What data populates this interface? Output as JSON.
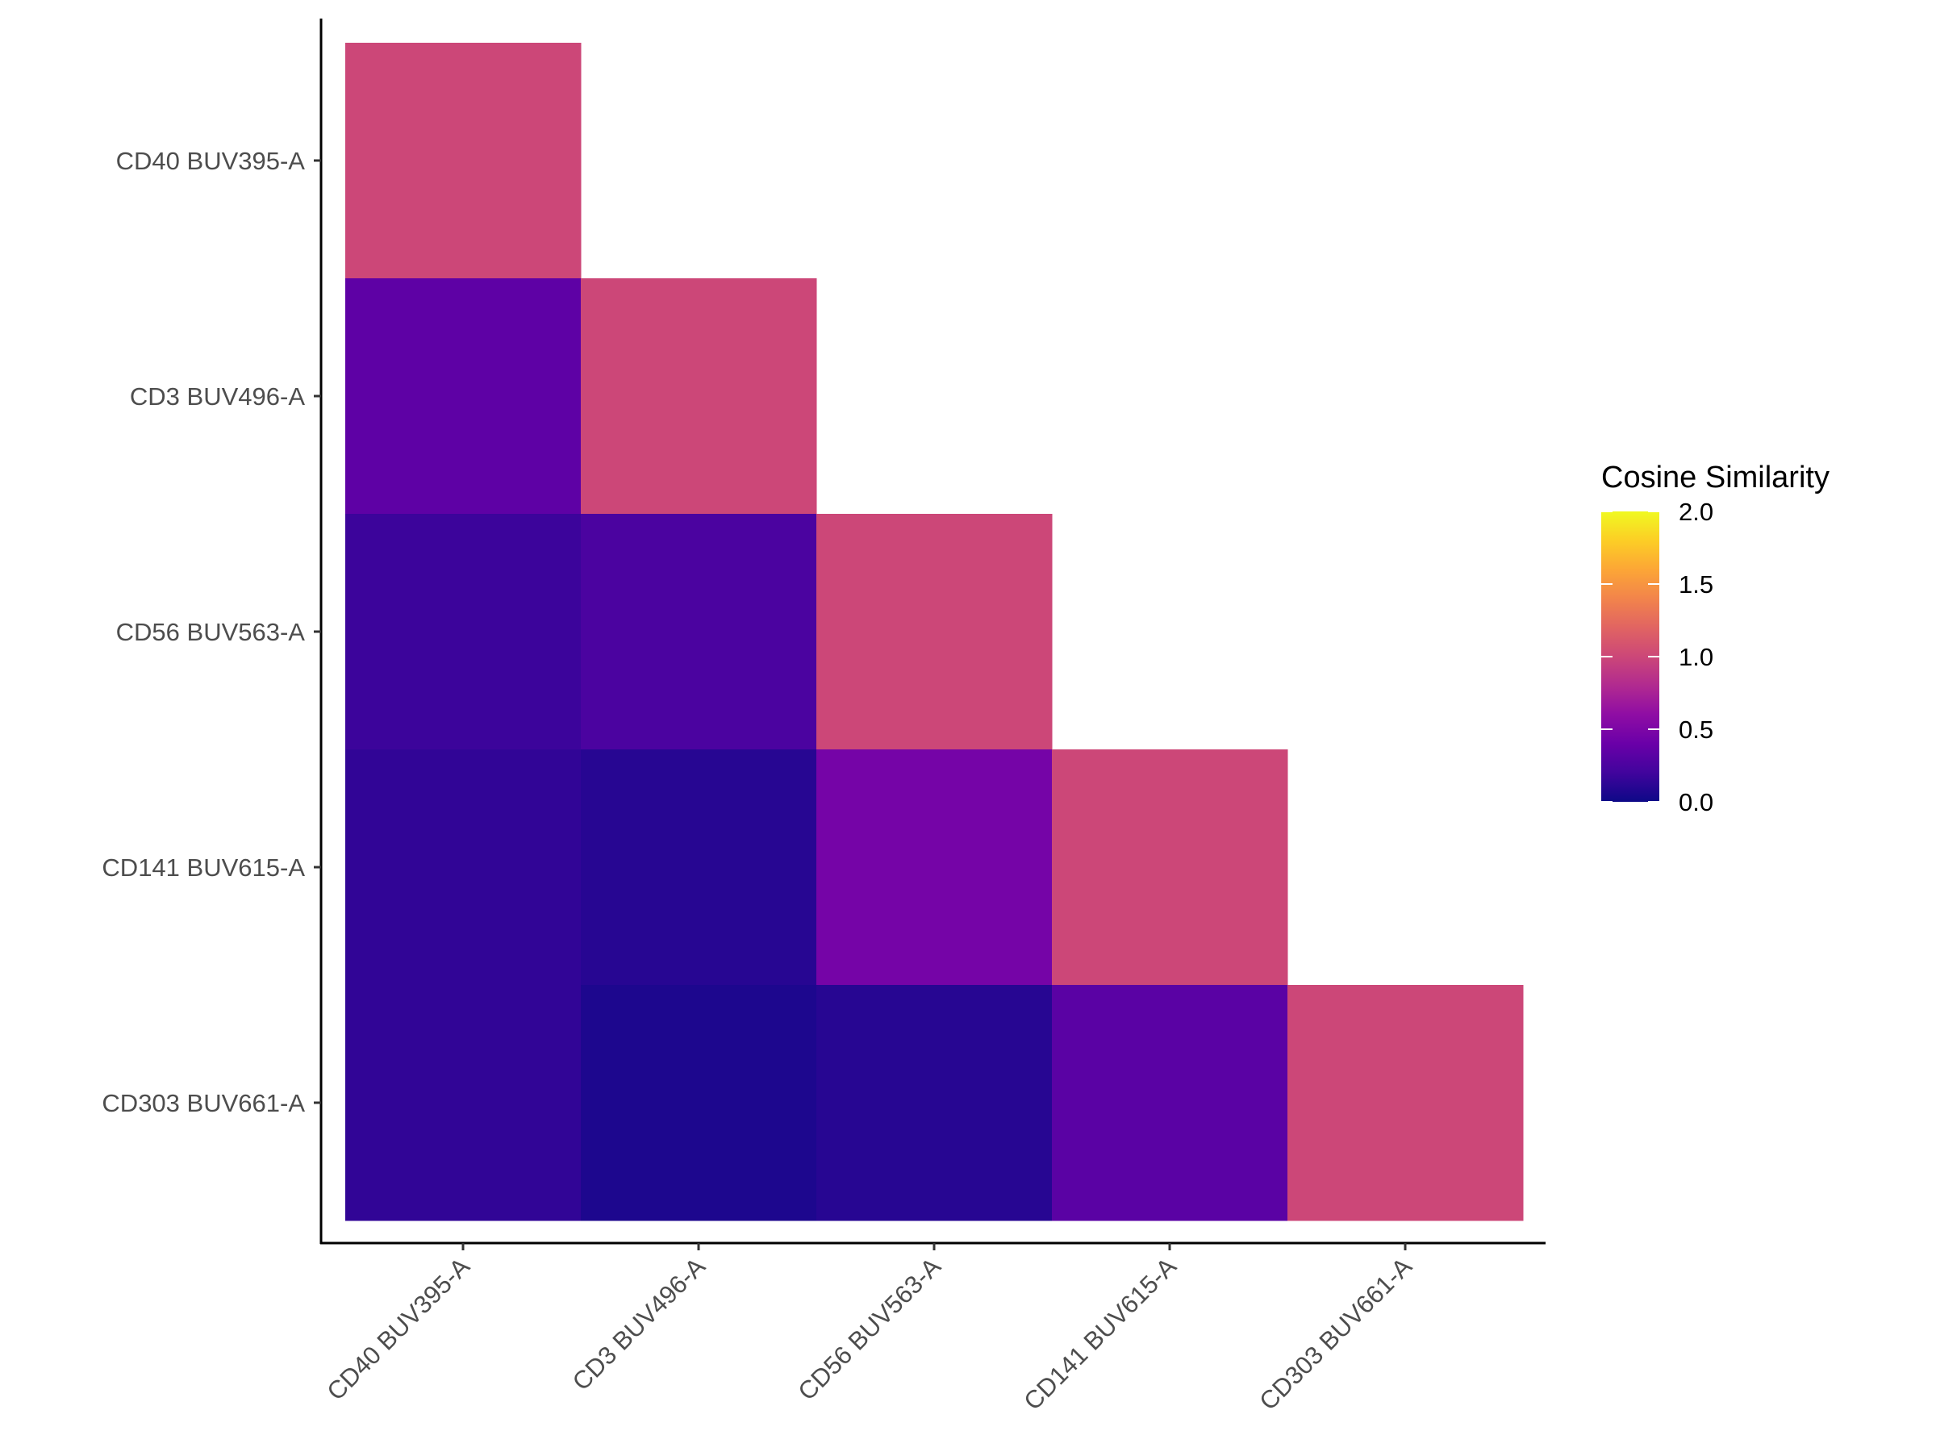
{
  "chart_data": {
    "type": "heatmap",
    "title": "",
    "xlabel": "",
    "ylabel": "",
    "x_categories": [
      "CD40 BUV395-A",
      "CD3 BUV496-A",
      "CD56 BUV563-A",
      "CD141 BUV615-A",
      "CD303 BUV661-A"
    ],
    "y_categories": [
      "CD40 BUV395-A",
      "CD3 BUV496-A",
      "CD56 BUV563-A",
      "CD141 BUV615-A",
      "CD303 BUV661-A"
    ],
    "values": [
      [
        1.0,
        null,
        null,
        null,
        null
      ],
      [
        0.34,
        1.0,
        null,
        null,
        null
      ],
      [
        0.18,
        0.25,
        1.0,
        null,
        null
      ],
      [
        0.14,
        0.1,
        0.46,
        1.0,
        null
      ],
      [
        0.14,
        0.06,
        0.1,
        0.32,
        1.0
      ]
    ],
    "layout_note": "lower triangle; rows are y categories top to bottom, columns are x categories left to right",
    "colorscale": "plasma",
    "color_range": [
      0,
      2
    ],
    "legend": {
      "title": "Cosine Similarity",
      "ticks": [
        "0.0",
        "0.5",
        "1.0",
        "1.5",
        "2.0"
      ],
      "placement": "right"
    },
    "grid": false
  }
}
